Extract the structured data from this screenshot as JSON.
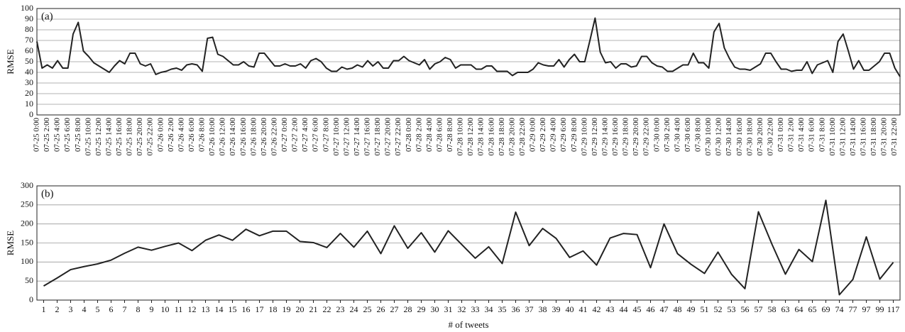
{
  "chart_data": [
    {
      "type": "line",
      "annotation": "(a)",
      "y_label": "RMSE",
      "grid": true,
      "color": "#222222",
      "ylim": [
        0,
        100
      ],
      "yticks": [
        0,
        10,
        20,
        30,
        40,
        50,
        60,
        70,
        80,
        90,
        100
      ],
      "categories": [
        "07-25 0:00",
        null,
        "07-25 2:00",
        null,
        "07-25 4:00",
        null,
        "07-25 6:00",
        null,
        "07-25 8:00",
        null,
        "07-25 10:00",
        null,
        "07-25 12:00",
        null,
        "07-25 14:00",
        null,
        "07-25 16:00",
        null,
        "07-25 18:00",
        null,
        "07-25 20:00",
        null,
        "07-25 22:00",
        null,
        "07-26 0:00",
        null,
        "07-26 2:00",
        null,
        "07-26 4:00",
        null,
        "07-26 6:00",
        null,
        "07-26 8:00",
        null,
        "07-26 10:00",
        null,
        "07-26 12:00",
        null,
        "07-26 14:00",
        null,
        "07-26 16:00",
        null,
        "07-26 18:00",
        null,
        "07-26 20:00",
        null,
        "07-26 22:00",
        null,
        "07-27 0:00",
        null,
        "07-27 2:00",
        null,
        "07-27 4:00",
        null,
        "07-27 6:00",
        null,
        "07-27 8:00",
        null,
        "07-27 10:00",
        null,
        "07-27 12:00",
        null,
        "07-27 14:00",
        null,
        "07-27 16:00",
        null,
        "07-27 18:00",
        null,
        "07-27 20:00",
        null,
        "07-27 22:00",
        null,
        "07-28 0:00",
        null,
        "07-28 2:00",
        null,
        "07-28 4:00",
        null,
        "07-28 6:00",
        null,
        "07-28 8:00",
        null,
        "07-28 10:00",
        null,
        "07-28 12:00",
        null,
        "07-28 14:00",
        null,
        "07-28 16:00",
        null,
        "07-28 18:00",
        null,
        "07-28 20:00",
        null,
        "07-28 22:00",
        null,
        "07-29 0:00",
        null,
        "07-29 2:00",
        null,
        "07-29 4:00",
        null,
        "07-29 6:00",
        null,
        "07-29 8:00",
        null,
        "07-29 10:00",
        null,
        "07-29 12:00",
        null,
        "07-29 14:00",
        null,
        "07-29 16:00",
        null,
        "07-29 18:00",
        null,
        "07-29 20:00",
        null,
        "07-29 22:00",
        null,
        "07-30 0:00",
        null,
        "07-30 2:00",
        null,
        "07-30 4:00",
        null,
        "07-30 6:00",
        null,
        "07-30 8:00",
        null,
        "07-30 10:00",
        null,
        "07-30 12:00",
        null,
        "07-30 14:00",
        null,
        "07-30 16:00",
        null,
        "07-30 18:00",
        null,
        "07-30 20:00",
        null,
        "07-30 22:00",
        null,
        "07-31 0:00",
        null,
        "07-31 2:00",
        null,
        "07-31 4:00",
        null,
        "07-31 6:00",
        null,
        "07-31 8:00",
        null,
        "07-31 10:00",
        null,
        "07-31 12:00",
        null,
        "07-31 14:00",
        null,
        "07-31 16:00",
        null,
        "07-31 18:00",
        null,
        "07-31 20:00",
        null,
        "07-31 22:00",
        null
      ],
      "values": [
        69,
        44,
        47,
        44,
        51,
        44,
        44,
        76,
        87,
        60,
        55,
        49,
        46,
        43,
        40,
        46,
        51,
        48,
        58,
        58,
        48,
        46,
        48,
        38,
        40,
        41,
        43,
        44,
        42,
        47,
        48,
        47,
        41,
        72,
        73,
        57,
        55,
        51,
        47,
        47,
        50,
        46,
        45,
        58,
        58,
        52,
        46,
        46,
        48,
        46,
        46,
        48,
        44,
        51,
        53,
        50,
        44,
        41,
        41,
        45,
        43,
        44,
        47,
        45,
        51,
        46,
        50,
        44,
        44,
        51,
        51,
        55,
        51,
        49,
        47,
        52,
        43,
        48,
        50,
        54,
        52,
        44,
        47,
        47,
        47,
        43,
        43,
        46,
        46,
        41,
        41,
        41,
        37,
        40,
        40,
        40,
        43,
        49,
        47,
        46,
        46,
        52,
        45,
        52,
        57,
        50,
        50,
        70,
        91,
        59,
        49,
        50,
        44,
        48,
        48,
        45,
        46,
        55,
        55,
        49,
        46,
        45,
        41,
        41,
        44,
        47,
        47,
        58,
        49,
        49,
        44,
        78,
        86,
        63,
        53,
        45,
        43,
        43,
        42,
        45,
        48,
        58,
        58,
        50,
        43,
        43,
        41,
        42,
        42,
        50,
        39,
        47,
        49,
        51,
        40,
        69,
        76,
        60,
        43,
        51,
        42,
        42,
        46,
        50,
        58,
        58,
        44,
        36
      ]
    },
    {
      "type": "line",
      "annotation": "(b)",
      "y_label": "RMSE",
      "x_label": "# of tweets",
      "grid": true,
      "color": "#222222",
      "ylim": [
        0,
        300
      ],
      "yticks": [
        0,
        50,
        100,
        150,
        200,
        250,
        300
      ],
      "categories": [
        "1",
        "2",
        "3",
        "4",
        "5",
        "6",
        "7",
        "8",
        "9",
        "10",
        "11",
        "12",
        "13",
        "14",
        "15",
        "16",
        "17",
        "18",
        "19",
        "20",
        "21",
        "22",
        "23",
        "24",
        "25",
        "26",
        "27",
        "28",
        "29",
        "30",
        "31",
        "32",
        "33",
        "34",
        "35",
        "36",
        "37",
        "38",
        "39",
        "40",
        "41",
        "42",
        "43",
        "44",
        "45",
        "46",
        "47",
        "48",
        "49",
        "51",
        "52",
        "53",
        "56",
        "57",
        "58",
        "63",
        "64",
        "65",
        "69",
        "74",
        "77",
        "97",
        "99",
        "117"
      ],
      "values": [
        37,
        58,
        80,
        88,
        95,
        105,
        123,
        139,
        131,
        141,
        150,
        130,
        157,
        171,
        157,
        186,
        169,
        181,
        181,
        154,
        151,
        138,
        175,
        139,
        181,
        122,
        195,
        136,
        177,
        126,
        182,
        146,
        110,
        140,
        96,
        231,
        143,
        188,
        162,
        112,
        129,
        92,
        163,
        175,
        172,
        85,
        200,
        122,
        94,
        70,
        126,
        68,
        30,
        232,
        147,
        68,
        133,
        101,
        262,
        14,
        54,
        166,
        55,
        99
      ]
    }
  ]
}
